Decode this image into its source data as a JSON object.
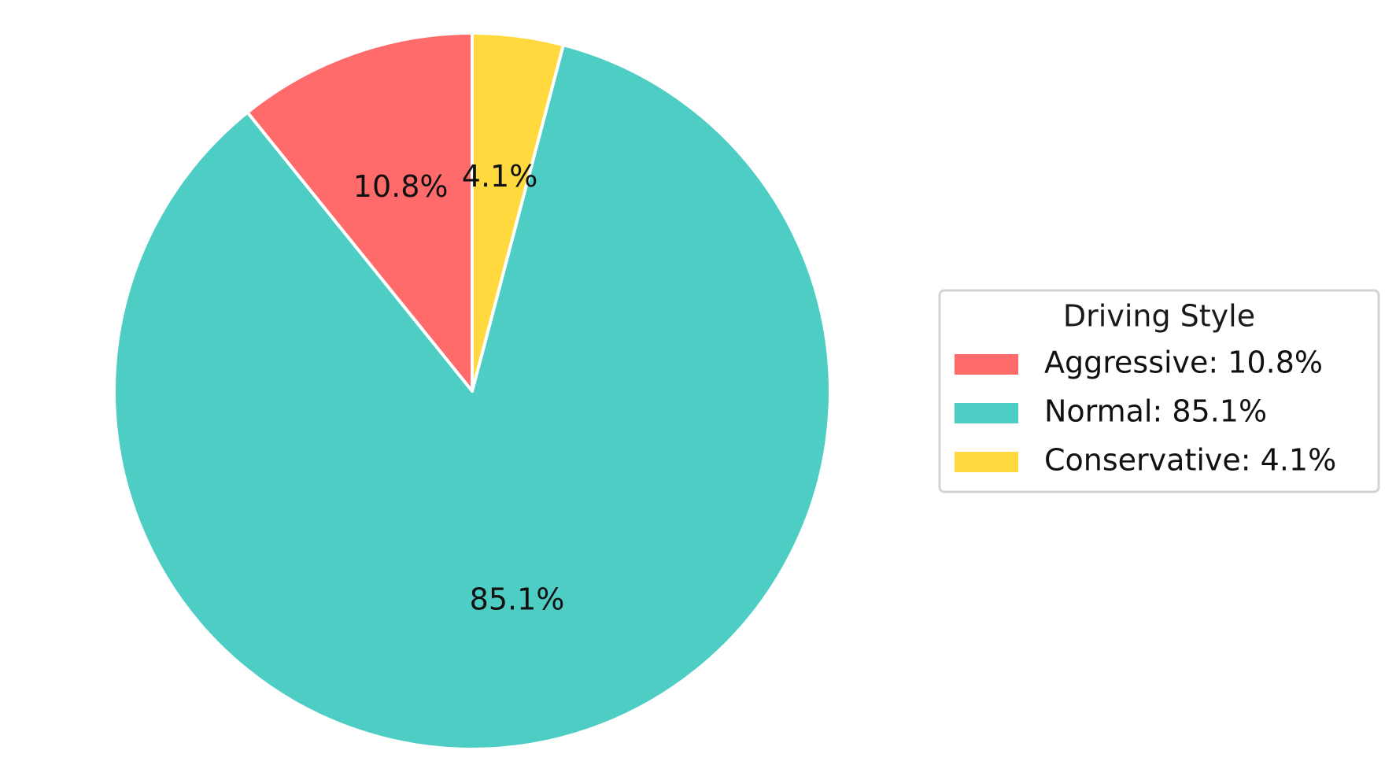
{
  "chart_data": {
    "type": "pie",
    "categories": [
      "Aggressive",
      "Normal",
      "Conservative"
    ],
    "values": [
      10.8,
      85.1,
      4.1
    ],
    "units": "%",
    "slice_labels": [
      "10.8%",
      "85.1%",
      "4.1%"
    ],
    "colors": [
      "#ff6b6b",
      "#4ecdc4",
      "#ffd93d"
    ],
    "start_angle_deg": 90,
    "direction": "counterclockwise",
    "title": "",
    "legend": {
      "title": "Driving Style",
      "placement": "center-right",
      "entries": [
        "Aggressive: 10.8%",
        "Normal: 85.1%",
        "Conservative: 4.1%"
      ]
    }
  }
}
